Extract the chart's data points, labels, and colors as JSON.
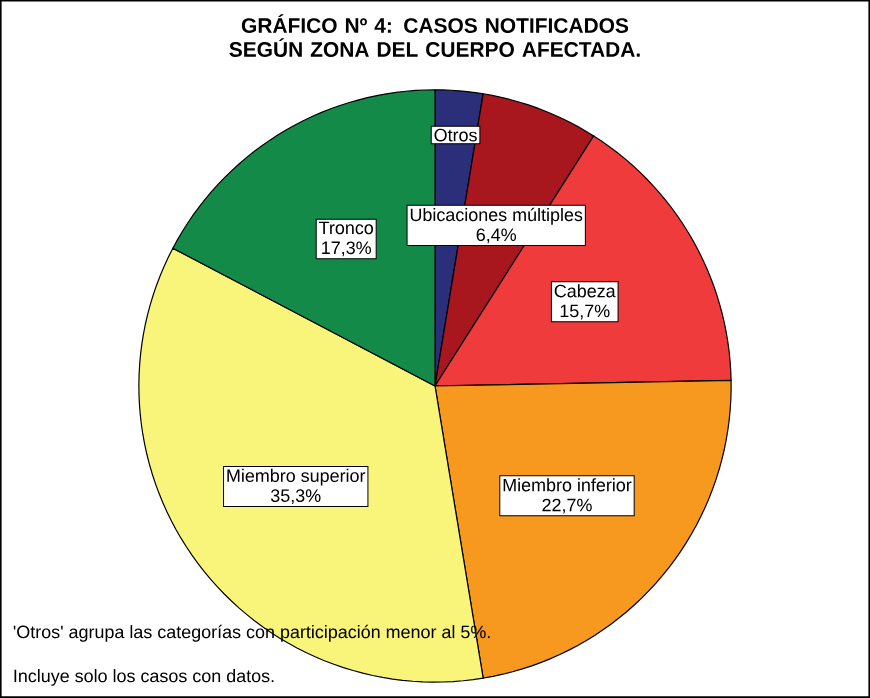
{
  "chart_data": {
    "type": "pie",
    "title": "GRÁFICO Nº 4: CASOS NOTIFICADOS SEGÚN ZONA DEL CUERPO AFECTADA.",
    "categories": [
      "Otros",
      "Ubicaciones múltiples",
      "Cabeza",
      "Miembro inferior",
      "Miembro superior",
      "Tronco"
    ],
    "values": [
      2.6,
      6.4,
      15.7,
      22.7,
      35.3,
      17.3
    ],
    "value_labels": [
      null,
      "6,4%",
      "15,7%",
      "22,7%",
      "35,3%",
      "17,3%"
    ],
    "colors": [
      "#2b2f7a",
      "#a8161e",
      "#ef3b3b",
      "#f7991f",
      "#f8f57a",
      "#138a48"
    ],
    "annotations": [
      "'Otros' agrupa las categorías con participación menor al 5%.",
      "Incluye solo los casos con datos."
    ]
  }
}
